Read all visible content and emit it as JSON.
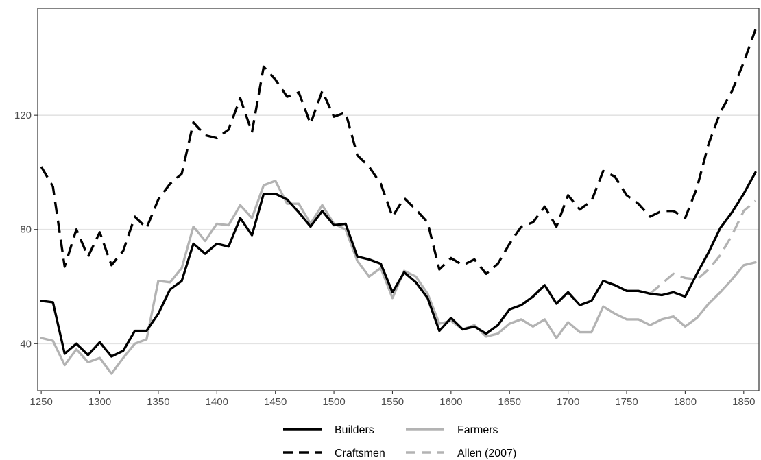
{
  "chart_data": {
    "type": "line",
    "title": "",
    "xlabel": "",
    "ylabel": "",
    "xlim": [
      1247,
      1863
    ],
    "ylim": [
      23.5,
      157.5
    ],
    "x_ticks": [
      1250,
      1300,
      1350,
      1400,
      1450,
      1500,
      1550,
      1600,
      1650,
      1700,
      1750,
      1800,
      1850
    ],
    "y_ticks": [
      40,
      80,
      120
    ],
    "grid": "horizontal",
    "legend_position": "bottom",
    "series": [
      {
        "name": "Builders",
        "color": "#000000",
        "dash": "solid",
        "points": [
          [
            1250,
            55
          ],
          [
            1260,
            54.5
          ],
          [
            1270,
            36.5
          ],
          [
            1280,
            40
          ],
          [
            1290,
            36
          ],
          [
            1300,
            40.5
          ],
          [
            1310,
            35.5
          ],
          [
            1320,
            37.5
          ],
          [
            1330,
            44.5
          ],
          [
            1340,
            44.5
          ],
          [
            1350,
            50.5
          ],
          [
            1360,
            59
          ],
          [
            1370,
            62
          ],
          [
            1380,
            75
          ],
          [
            1390,
            71.5
          ],
          [
            1400,
            75
          ],
          [
            1410,
            74
          ],
          [
            1420,
            84
          ],
          [
            1430,
            78
          ],
          [
            1440,
            92.5
          ],
          [
            1450,
            92.5
          ],
          [
            1460,
            90.5
          ],
          [
            1470,
            86
          ],
          [
            1480,
            81
          ],
          [
            1490,
            86.5
          ],
          [
            1500,
            81.5
          ],
          [
            1510,
            82
          ],
          [
            1520,
            70.5
          ],
          [
            1530,
            69.5
          ],
          [
            1540,
            68
          ],
          [
            1550,
            58
          ],
          [
            1560,
            65
          ],
          [
            1570,
            61.5
          ],
          [
            1580,
            56
          ],
          [
            1590,
            44.5
          ],
          [
            1600,
            49
          ],
          [
            1610,
            45
          ],
          [
            1620,
            46
          ],
          [
            1630,
            43.5
          ],
          [
            1640,
            46.5
          ],
          [
            1650,
            52
          ],
          [
            1660,
            53.5
          ],
          [
            1670,
            56.5
          ],
          [
            1680,
            60.5
          ],
          [
            1690,
            54
          ],
          [
            1700,
            58
          ],
          [
            1710,
            53.5
          ],
          [
            1720,
            55
          ],
          [
            1730,
            62
          ],
          [
            1740,
            60.5
          ],
          [
            1750,
            58.5
          ],
          [
            1760,
            58.5
          ],
          [
            1770,
            57.5
          ],
          [
            1780,
            57
          ],
          [
            1790,
            58
          ],
          [
            1800,
            56.5
          ],
          [
            1810,
            64.5
          ],
          [
            1820,
            72
          ],
          [
            1830,
            80.5
          ],
          [
            1840,
            86
          ],
          [
            1850,
            92.5
          ],
          [
            1860,
            100
          ]
        ]
      },
      {
        "name": "Farmers",
        "color": "#b3b3b3",
        "dash": "solid",
        "points": [
          [
            1250,
            42
          ],
          [
            1260,
            41
          ],
          [
            1270,
            32.5
          ],
          [
            1280,
            38
          ],
          [
            1290,
            33.5
          ],
          [
            1300,
            35
          ],
          [
            1310,
            29.5
          ],
          [
            1320,
            35
          ],
          [
            1330,
            40
          ],
          [
            1340,
            41.5
          ],
          [
            1350,
            62
          ],
          [
            1360,
            61.5
          ],
          [
            1370,
            66.5
          ],
          [
            1380,
            81
          ],
          [
            1390,
            76
          ],
          [
            1400,
            82
          ],
          [
            1410,
            81.5
          ],
          [
            1420,
            88.5
          ],
          [
            1430,
            84
          ],
          [
            1440,
            95.5
          ],
          [
            1450,
            97
          ],
          [
            1460,
            89
          ],
          [
            1470,
            89
          ],
          [
            1480,
            82
          ],
          [
            1490,
            88.5
          ],
          [
            1500,
            82
          ],
          [
            1510,
            80
          ],
          [
            1520,
            69
          ],
          [
            1530,
            63.5
          ],
          [
            1540,
            66.5
          ],
          [
            1550,
            56
          ],
          [
            1560,
            65.5
          ],
          [
            1570,
            63.5
          ],
          [
            1580,
            57.5
          ],
          [
            1590,
            47
          ],
          [
            1600,
            48
          ],
          [
            1610,
            45
          ],
          [
            1620,
            46.5
          ],
          [
            1630,
            42.5
          ],
          [
            1640,
            43.5
          ],
          [
            1650,
            47
          ],
          [
            1660,
            48.5
          ],
          [
            1670,
            46
          ],
          [
            1680,
            48.5
          ],
          [
            1690,
            42
          ],
          [
            1700,
            47.5
          ],
          [
            1710,
            44
          ],
          [
            1720,
            44
          ],
          [
            1730,
            53
          ],
          [
            1740,
            50.5
          ],
          [
            1750,
            48.5
          ],
          [
            1760,
            48.5
          ],
          [
            1770,
            46.5
          ],
          [
            1780,
            48.5
          ],
          [
            1790,
            49.5
          ],
          [
            1800,
            46
          ],
          [
            1810,
            49
          ],
          [
            1820,
            54
          ],
          [
            1830,
            58
          ],
          [
            1840,
            62.5
          ],
          [
            1850,
            67.5
          ],
          [
            1860,
            68.5
          ]
        ]
      },
      {
        "name": "Craftsmen",
        "color": "#000000",
        "dash": "dashed",
        "points": [
          [
            1250,
            102
          ],
          [
            1260,
            95
          ],
          [
            1270,
            67
          ],
          [
            1280,
            80
          ],
          [
            1290,
            70.5
          ],
          [
            1300,
            79
          ],
          [
            1310,
            67.5
          ],
          [
            1320,
            72.5
          ],
          [
            1330,
            84.5
          ],
          [
            1340,
            80.5
          ],
          [
            1350,
            90.5
          ],
          [
            1360,
            96
          ],
          [
            1370,
            99.5
          ],
          [
            1380,
            117.5
          ],
          [
            1390,
            113
          ],
          [
            1400,
            112
          ],
          [
            1410,
            115
          ],
          [
            1420,
            126
          ],
          [
            1430,
            114
          ],
          [
            1440,
            137
          ],
          [
            1450,
            132.5
          ],
          [
            1460,
            126.5
          ],
          [
            1470,
            128
          ],
          [
            1480,
            117
          ],
          [
            1490,
            128.5
          ],
          [
            1500,
            119.5
          ],
          [
            1510,
            121
          ],
          [
            1520,
            106
          ],
          [
            1530,
            102
          ],
          [
            1540,
            96
          ],
          [
            1550,
            84.5
          ],
          [
            1560,
            91
          ],
          [
            1570,
            87
          ],
          [
            1580,
            82.5
          ],
          [
            1590,
            66
          ],
          [
            1600,
            70
          ],
          [
            1610,
            67.5
          ],
          [
            1620,
            69.5
          ],
          [
            1630,
            64.5
          ],
          [
            1640,
            68
          ],
          [
            1650,
            75
          ],
          [
            1660,
            81
          ],
          [
            1670,
            82.5
          ],
          [
            1680,
            88
          ],
          [
            1690,
            81
          ],
          [
            1700,
            92
          ],
          [
            1710,
            87
          ],
          [
            1720,
            90
          ],
          [
            1730,
            100.5
          ],
          [
            1740,
            98.5
          ],
          [
            1750,
            92
          ],
          [
            1760,
            89
          ],
          [
            1770,
            84.5
          ],
          [
            1780,
            86.5
          ],
          [
            1790,
            86.5
          ],
          [
            1800,
            84
          ],
          [
            1810,
            94.5
          ],
          [
            1820,
            110
          ],
          [
            1830,
            121
          ],
          [
            1840,
            128.5
          ],
          [
            1850,
            138.5
          ],
          [
            1860,
            150
          ]
        ]
      },
      {
        "name": "Allen (2007)",
        "color": "#b3b3b3",
        "dash": "dashed",
        "points": [
          [
            1770,
            57.5
          ],
          [
            1780,
            61
          ],
          [
            1790,
            64.5
          ],
          [
            1800,
            63
          ],
          [
            1810,
            62.5
          ],
          [
            1820,
            66
          ],
          [
            1830,
            71
          ],
          [
            1840,
            78
          ],
          [
            1850,
            86.5
          ],
          [
            1860,
            90
          ]
        ]
      }
    ]
  }
}
